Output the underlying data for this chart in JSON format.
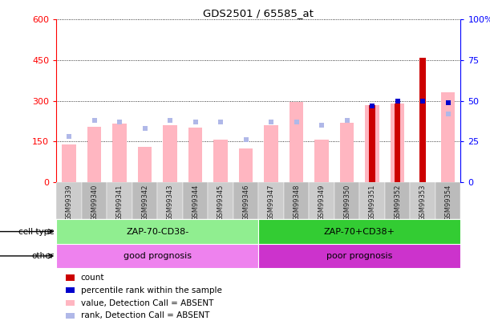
{
  "title": "GDS2501 / 65585_at",
  "samples": [
    "GSM99339",
    "GSM99340",
    "GSM99341",
    "GSM99342",
    "GSM99343",
    "GSM99344",
    "GSM99345",
    "GSM99346",
    "GSM99347",
    "GSM99348",
    "GSM99349",
    "GSM99350",
    "GSM99351",
    "GSM99352",
    "GSM99353",
    "GSM99354"
  ],
  "value_absent": [
    140,
    205,
    215,
    130,
    210,
    200,
    155,
    125,
    210,
    295,
    155,
    220,
    285,
    290,
    0,
    330
  ],
  "rank_absent_pct": [
    28,
    38,
    37,
    33,
    38,
    37,
    37,
    26,
    37,
    37,
    35,
    38,
    0,
    0,
    0,
    42
  ],
  "count_vals": [
    0,
    0,
    0,
    0,
    0,
    0,
    0,
    0,
    0,
    0,
    0,
    0,
    283,
    290,
    460,
    0
  ],
  "percentile_rank_pct": [
    0,
    0,
    0,
    0,
    0,
    0,
    0,
    0,
    0,
    0,
    0,
    0,
    47,
    50,
    50,
    49
  ],
  "has_count": [
    false,
    false,
    false,
    false,
    false,
    false,
    false,
    false,
    false,
    false,
    false,
    false,
    true,
    true,
    true,
    false
  ],
  "has_percentile": [
    false,
    false,
    false,
    false,
    false,
    false,
    false,
    false,
    false,
    false,
    false,
    false,
    true,
    true,
    true,
    true
  ],
  "cell_type_groups": [
    {
      "label": "ZAP-70-CD38-",
      "start": 0,
      "end": 8,
      "color": "#90ee90"
    },
    {
      "label": "ZAP-70+CD38+",
      "start": 8,
      "end": 16,
      "color": "#33cc33"
    }
  ],
  "other_groups": [
    {
      "label": "good prognosis",
      "start": 0,
      "end": 8,
      "color": "#ee82ee"
    },
    {
      "label": "poor prognosis",
      "start": 8,
      "end": 16,
      "color": "#cc33cc"
    }
  ],
  "ylim_left": [
    0,
    600
  ],
  "ylim_right": [
    0,
    100
  ],
  "yticks_left": [
    0,
    150,
    300,
    450,
    600
  ],
  "yticks_right": [
    0,
    25,
    50,
    75,
    100
  ],
  "value_color": "#ffb6c1",
  "rank_color": "#b0b8e8",
  "count_color": "#cc0000",
  "percentile_color": "#0000cc",
  "bg_color": "#ffffff",
  "legend_items": [
    {
      "label": "count",
      "color": "#cc0000"
    },
    {
      "label": "percentile rank within the sample",
      "color": "#0000cc"
    },
    {
      "label": "value, Detection Call = ABSENT",
      "color": "#ffb6c1"
    },
    {
      "label": "rank, Detection Call = ABSENT",
      "color": "#b0b8e8"
    }
  ]
}
